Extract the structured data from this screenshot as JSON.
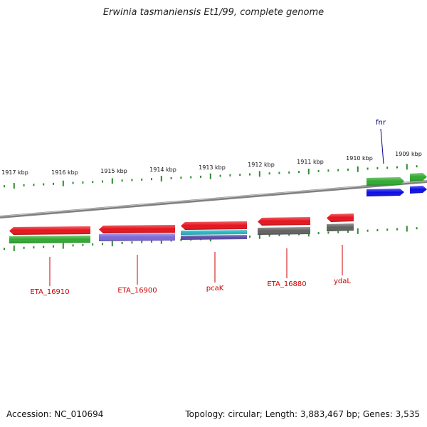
{
  "title": "Erwinia tasmaniensis Et1/99, complete genome",
  "footer": {
    "accession": "Accession: NC_010694",
    "topology": "Topology: circular; Length: 3,883,467 bp; Genes: 3,535"
  },
  "colors": {
    "backbone": "#808080",
    "tick": "#2e8b2e",
    "tick_label": "#111111",
    "gene_label_red": "#cc0000",
    "gene_label_blue": "#000088"
  },
  "scale_labels": [
    "1917 kbp",
    "1916 kbp",
    "1915 kbp",
    "1914 kbp",
    "1913 kbp",
    "1912 kbp",
    "1911 kbp",
    "1910 kbp",
    "1909 kbp"
  ],
  "genes": [
    {
      "label": "ETA_16910",
      "strand": "-",
      "colors": [
        "#e8101a",
        "#2eaa2e"
      ]
    },
    {
      "label": "ETA_16900",
      "strand": "-",
      "colors": [
        "#e8101a",
        "#7b68d8"
      ]
    },
    {
      "label": "pcaK",
      "strand": "-",
      "colors": [
        "#e8101a",
        "#2ab4c0",
        "#5a4aa8"
      ]
    },
    {
      "label": "ETA_16880",
      "strand": "-",
      "colors": [
        "#e8101a",
        "#606060"
      ]
    },
    {
      "label": "ydaL",
      "strand": "-",
      "colors": [
        "#e8101a",
        "#606060"
      ]
    },
    {
      "label": "fnr",
      "strand": "+",
      "colors": [
        "#2eaa2e",
        "#0a0ae8"
      ]
    },
    {
      "label": "",
      "strand": "+",
      "colors": [
        "#2eaa2e",
        "#0a0ae8"
      ]
    }
  ]
}
